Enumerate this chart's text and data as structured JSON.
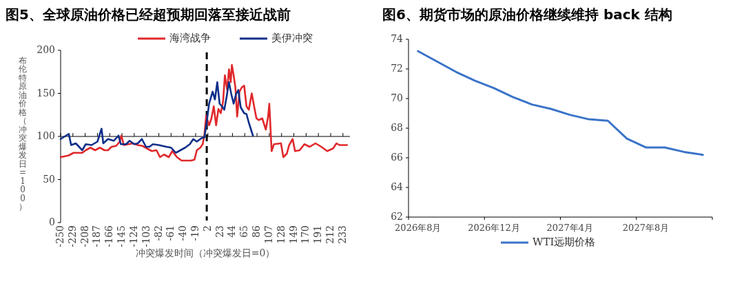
{
  "chart_data": [
    {
      "type": "line",
      "title": "图5、全球原油价格已经超预期回落至接近战前",
      "xlabel": "冲突爆发时间（冲突爆发日=0）",
      "ylabel": "布伦特原油价格（冲突爆发日=100）",
      "legend": "top",
      "xlim": [
        -250,
        245
      ],
      "xticks": [
        -250,
        -229,
        -208,
        -187,
        -166,
        -145,
        -124,
        -103,
        -82,
        -61,
        -40,
        -19,
        2,
        23,
        44,
        65,
        86,
        107,
        128,
        149,
        170,
        191,
        212,
        233
      ],
      "ylim": [
        0,
        200
      ],
      "yticks": [
        0,
        50,
        100,
        150,
        200
      ],
      "ref_lines": [
        {
          "axis": "x",
          "value": 0,
          "color": "#000000",
          "line_style": "dashed"
        },
        {
          "axis": "y",
          "value": 100,
          "color": "#000000",
          "line_style": "solid"
        }
      ],
      "series": [
        {
          "name": "海湾战争",
          "color": "#e0282b",
          "x": [
            -250,
            -236,
            -228,
            -213,
            -207,
            -199,
            -191,
            -183,
            -175,
            -169,
            -163,
            -155,
            -149,
            -146,
            -142,
            -134,
            -126,
            -118,
            -110,
            -102,
            -94,
            -86,
            -80,
            -73,
            -65,
            -59,
            -51,
            -43,
            -35,
            -27,
            -21,
            -17,
            -11,
            -7,
            -4,
            -1,
            4,
            8,
            12,
            16,
            20,
            24,
            28,
            31,
            35,
            38,
            41,
            43,
            46,
            49,
            52,
            56,
            60,
            64,
            68,
            72,
            77,
            81,
            85,
            89,
            95,
            101,
            105,
            107,
            110,
            111,
            115,
            127,
            131,
            137,
            141,
            147,
            151,
            159,
            167,
            176,
            186,
            196,
            206,
            216,
            222,
            227,
            240
          ],
          "values": [
            76,
            78,
            81,
            81,
            84,
            87,
            84,
            87,
            84,
            84,
            88,
            89,
            94,
            101,
            90,
            91,
            92,
            90,
            89,
            86,
            83,
            84,
            76,
            79,
            76,
            83,
            76,
            72,
            72,
            72,
            73,
            84,
            87,
            91,
            102,
            124,
            113,
            121,
            135,
            113,
            132,
            127,
            141,
            171,
            154,
            178,
            163,
            183,
            171,
            157,
            123,
            152,
            157,
            159,
            135,
            131,
            150,
            135,
            121,
            119,
            121,
            108,
            123,
            138,
            97,
            83,
            91,
            92,
            76,
            80,
            90,
            97,
            83,
            84,
            91,
            88,
            92,
            88,
            83,
            86,
            92,
            90,
            90
          ]
        },
        {
          "name": "美伊冲突",
          "color": "#0d2f8a",
          "x": [
            -250,
            -236,
            -232,
            -224,
            -213,
            -207,
            -197,
            -187,
            -180,
            -177,
            -169,
            -159,
            -151,
            -147,
            -138,
            -132,
            -124,
            -118,
            -111,
            -104,
            -98,
            -92,
            -82,
            -69,
            -61,
            -53,
            -45,
            -37,
            -29,
            -23,
            -17,
            -9,
            -4,
            0,
            4,
            10,
            14,
            18,
            22,
            26,
            30,
            34,
            38,
            42,
            46,
            50,
            54,
            58,
            64,
            68,
            72,
            79
          ],
          "values": [
            97,
            103,
            90,
            92,
            84,
            91,
            90,
            94,
            109,
            92,
            97,
            95,
            101,
            91,
            91,
            95,
            91,
            92,
            97,
            88,
            88,
            91,
            90,
            88,
            87,
            81,
            84,
            87,
            91,
            97,
            94,
            98,
            99,
            117,
            138,
            152,
            143,
            163,
            138,
            135,
            131,
            146,
            163,
            149,
            138,
            149,
            154,
            134,
            127,
            126,
            116,
            101
          ]
        }
      ]
    },
    {
      "type": "line",
      "title": "图6、期货市场的原油价格继续维持 **back** 结构",
      "legend": "bottom",
      "categories": [
        "2026年8月",
        null,
        null,
        null,
        "2026年12月",
        null,
        null,
        null,
        "2027年4月",
        null,
        null,
        null,
        "2027年8月",
        null,
        null,
        null
      ],
      "ylim": [
        62,
        74
      ],
      "yticks": [
        62,
        64,
        66,
        68,
        70,
        72,
        74
      ],
      "series": [
        {
          "name": "WTI远期价格",
          "color": "#3a73c8",
          "values": [
            73.2,
            72.5,
            71.8,
            71.2,
            70.7,
            70.1,
            69.6,
            69.3,
            68.9,
            68.6,
            68.5,
            67.3,
            66.7,
            66.7,
            66.4,
            66.2
          ]
        }
      ]
    }
  ]
}
